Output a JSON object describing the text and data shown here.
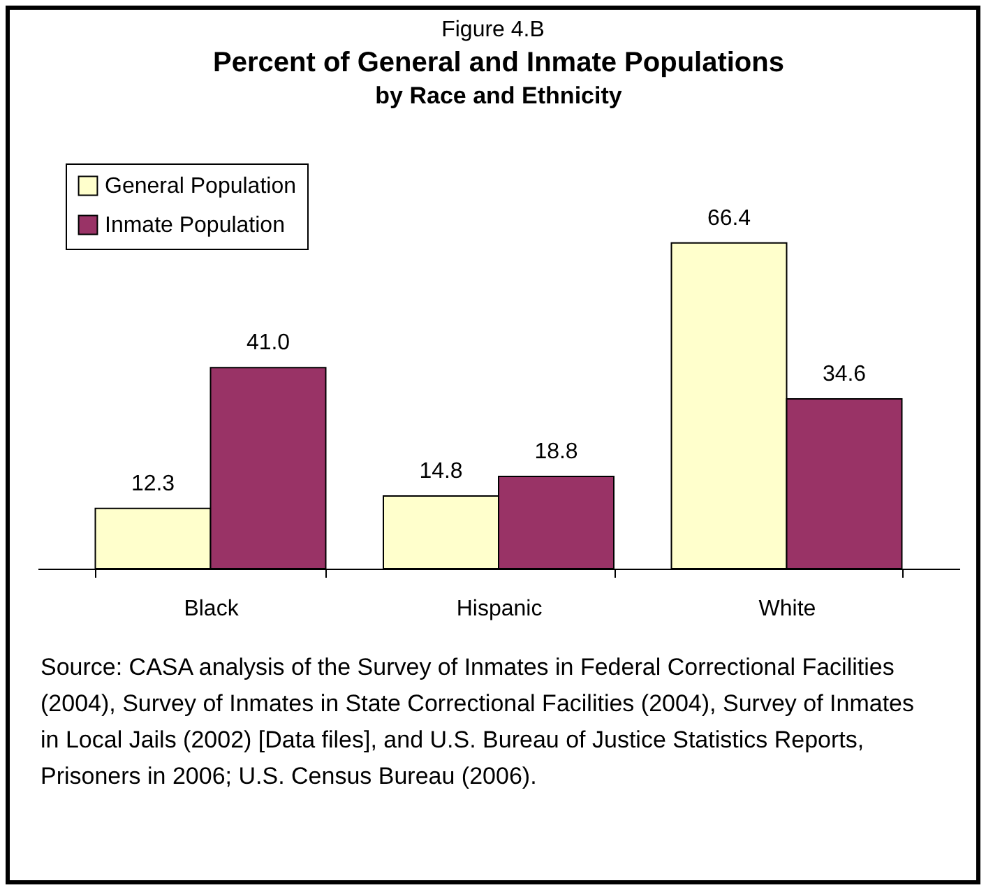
{
  "chart_data": {
    "type": "bar",
    "title": "Percent of General and Inmate Populations",
    "subtitle": "by Race and Ethnicity",
    "annotations": [
      "Figure 4.B",
      "Source: CASA analysis of the Survey of Inmates in Federal Correctional Facilities (2004), Survey of Inmates in State Correctional Facilities (2004), Survey of Inmates in Local Jails (2002) [Data files], and U.S. Bureau of Justice Statistics Reports, Prisoners in 2006; U.S. Census Bureau (2006)."
    ],
    "categories": [
      "Black",
      "Hispanic",
      "White"
    ],
    "series": [
      {
        "name": "General Population",
        "color": "#ffffcc",
        "values": [
          12.3,
          14.8,
          66.4
        ],
        "value_labels": [
          "12.3",
          "14.8",
          "66.4"
        ]
      },
      {
        "name": "Inmate Population",
        "color": "#993366",
        "values": [
          41.0,
          18.8,
          34.6
        ],
        "value_labels": [
          "41.0",
          "18.8",
          "34.6"
        ]
      }
    ],
    "data_labels": true,
    "legend": "top left",
    "grid": false
  }
}
